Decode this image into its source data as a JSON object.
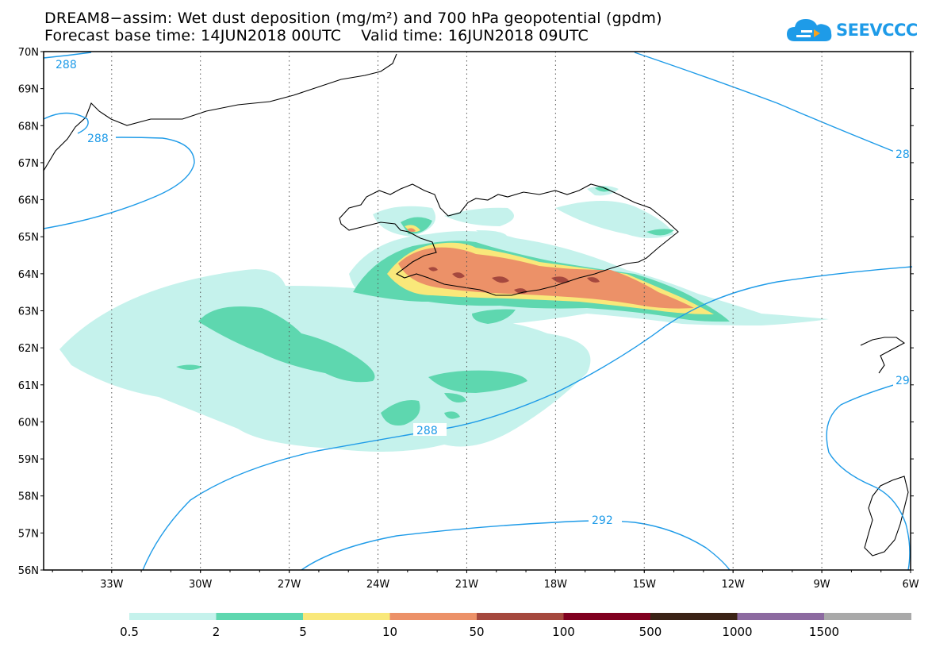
{
  "title": {
    "line1": "DREAM8−assim: Wet dust deposition (mg/m²) and 700 hPa geopotential (gpdm)",
    "line2": "Forecast base time: 14JUN2018 00UTC    Valid time: 16JUN2018 09UTC"
  },
  "logo": {
    "text": "SEEVCCC",
    "icon": "cloud-icon",
    "color": "#1e9be8"
  },
  "axes": {
    "lat_labels": [
      "70N",
      "69N",
      "68N",
      "67N",
      "66N",
      "65N",
      "64N",
      "63N",
      "62N",
      "61N",
      "60N",
      "59N",
      "58N",
      "57N",
      "56N"
    ],
    "lon_labels": [
      "33W",
      "30W",
      "27W",
      "24W",
      "21W",
      "18W",
      "15W",
      "12W",
      "9W",
      "6W"
    ]
  },
  "contour_labels": {
    "c288_nw": "288",
    "c288_w": "288",
    "c288_ne": "28",
    "c288_s": "288",
    "c292_e": "29",
    "c292_s": "292"
  },
  "colorbar": {
    "labels": [
      "0.5",
      "2",
      "5",
      "10",
      "50",
      "100",
      "500",
      "1000",
      "1500"
    ],
    "colors": [
      "#c5f2ec",
      "#5ed7af",
      "#f9e87a",
      "#ec9168",
      "#a5483e",
      "#800020",
      "#3b2316",
      "#8c6aa0",
      "#a9a9a9"
    ]
  },
  "colors": {
    "contour": "#1e9be8",
    "coast": "#000000",
    "grid": "#555555"
  }
}
